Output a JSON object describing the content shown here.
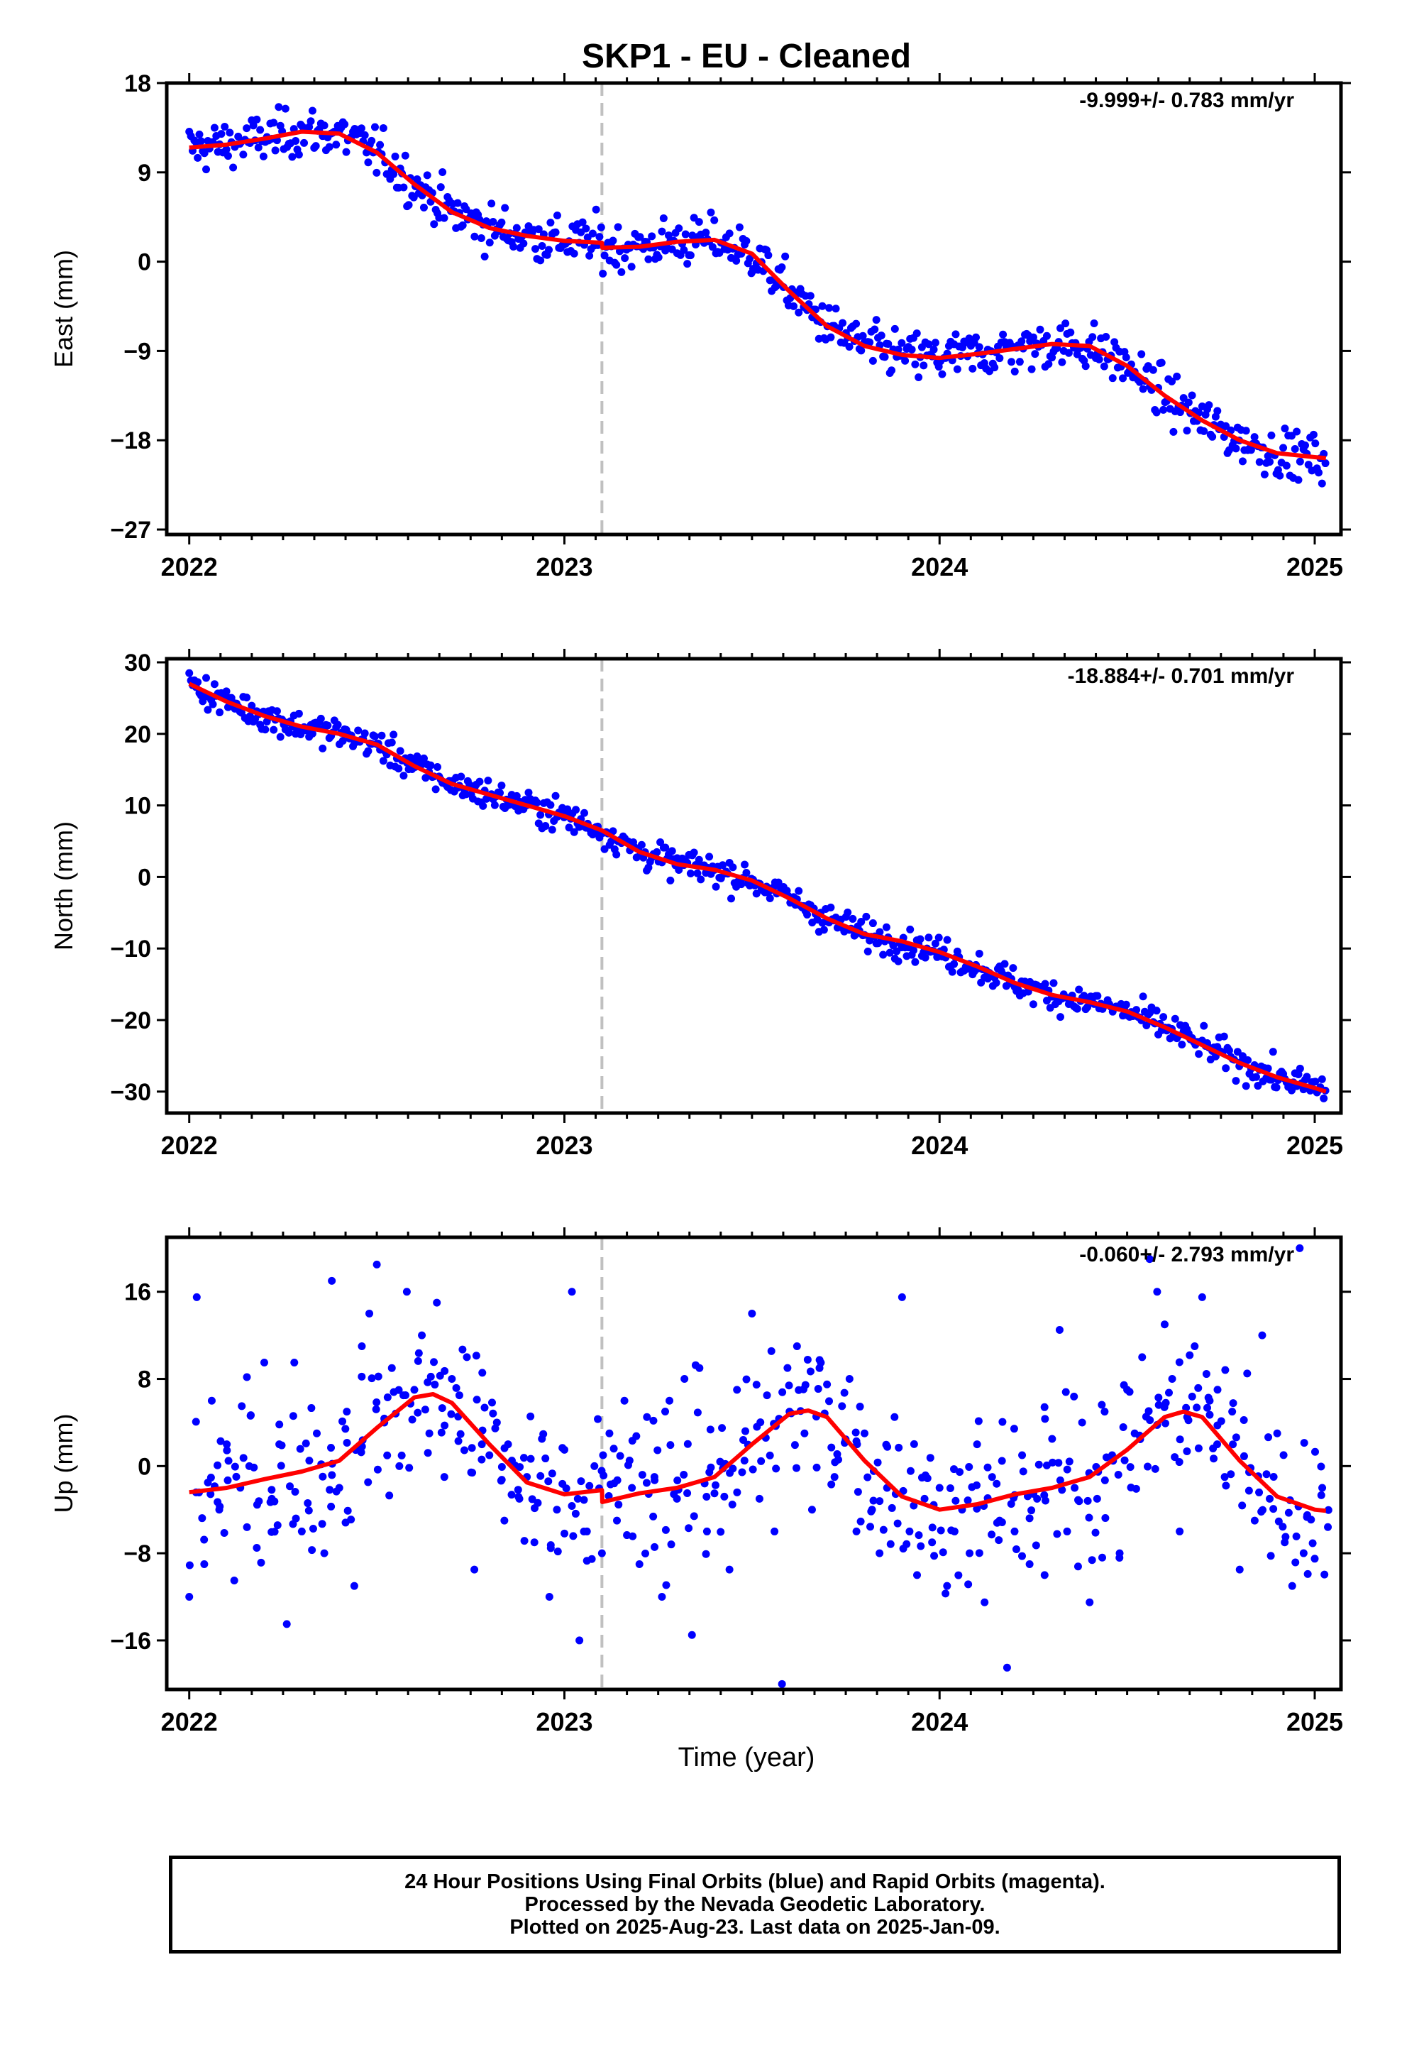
{
  "title": "SKP1  - EU - Cleaned",
  "xlabel": "Time (year)",
  "footer": {
    "line1": "24 Hour Positions Using Final Orbits (blue) and Rapid Orbits (magenta).",
    "line2": "Processed by the Nevada Geodetic Laboratory.",
    "line3": "Plotted on 2025-Aug-23. Last data on 2025-Jan-09."
  },
  "colors": {
    "points": "#0000ff",
    "fit": "#ff0000",
    "marker_line": "#c0c0c0"
  },
  "chart_data": [
    {
      "type": "scatter",
      "panel": "east",
      "ylabel": "East (mm)",
      "rate_label": "-9.999+/- 0.783 mm/yr",
      "xlim": [
        2021.94,
        2025.07
      ],
      "ylim": [
        -27.5,
        18
      ],
      "yticks": [
        18,
        9,
        0,
        -9,
        -18,
        -27
      ],
      "ytick_labels": [
        "18",
        "9",
        "0",
        "−9",
        "−18",
        "−27"
      ],
      "xticks": [
        2022,
        2023,
        2024,
        2025
      ],
      "xtick_labels": [
        "2022",
        "2023",
        "2024",
        "2025"
      ],
      "marker_x": 2023.1,
      "fit_x": [
        2022.0,
        2022.1,
        2022.2,
        2022.3,
        2022.4,
        2022.5,
        2022.6,
        2022.7,
        2022.8,
        2022.9,
        2023.0,
        2023.1,
        2023.101,
        2023.2,
        2023.3,
        2023.4,
        2023.5,
        2023.6,
        2023.7,
        2023.8,
        2023.9,
        2024.0,
        2024.1,
        2024.2,
        2024.3,
        2024.4,
        2024.5,
        2024.6,
        2024.7,
        2024.8,
        2024.9,
        2025.0,
        2025.03
      ],
      "fit_y": [
        11.5,
        11.8,
        12.4,
        13.1,
        12.9,
        11.0,
        7.8,
        5.0,
        3.4,
        2.6,
        2.1,
        1.9,
        1.4,
        1.5,
        2.0,
        2.2,
        0.8,
        -3.0,
        -6.5,
        -8.5,
        -9.4,
        -9.7,
        -9.3,
        -8.8,
        -8.3,
        -8.5,
        -10.5,
        -13.5,
        -16.0,
        -18.0,
        -19.3,
        -19.7,
        -19.8
      ]
    },
    {
      "type": "scatter",
      "panel": "north",
      "ylabel": "North (mm)",
      "rate_label": "-18.884+/- 0.701 mm/yr",
      "xlim": [
        2021.94,
        2025.07
      ],
      "ylim": [
        -33,
        30.5
      ],
      "yticks": [
        30,
        20,
        10,
        0,
        -10,
        -20,
        -30
      ],
      "ytick_labels": [
        "30",
        "20",
        "10",
        "0",
        "−10",
        "−20",
        "−30"
      ],
      "xticks": [
        2022,
        2023,
        2024,
        2025
      ],
      "xtick_labels": [
        "2022",
        "2023",
        "2024",
        "2025"
      ],
      "marker_x": 2023.1,
      "fit_x": [
        2022.0,
        2022.1,
        2022.2,
        2022.3,
        2022.4,
        2022.5,
        2022.6,
        2022.7,
        2022.8,
        2022.9,
        2023.0,
        2023.1,
        2023.2,
        2023.3,
        2023.4,
        2023.5,
        2023.6,
        2023.7,
        2023.8,
        2023.9,
        2024.0,
        2024.1,
        2024.2,
        2024.3,
        2024.4,
        2024.5,
        2024.6,
        2024.7,
        2024.8,
        2024.9,
        2025.0,
        2025.03
      ],
      "fit_y": [
        27.0,
        24.5,
        22.5,
        21.0,
        20.0,
        18.5,
        15.5,
        13.0,
        11.5,
        10.0,
        8.5,
        6.5,
        3.5,
        1.8,
        1.0,
        -0.5,
        -3.0,
        -5.8,
        -8.0,
        -9.0,
        -10.5,
        -12.5,
        -14.8,
        -16.5,
        -17.5,
        -18.8,
        -21.0,
        -23.5,
        -26.0,
        -28.0,
        -29.5,
        -30.0
      ]
    },
    {
      "type": "scatter",
      "panel": "up",
      "ylabel": "Up (mm)",
      "rate_label": "-0.060+/- 2.793 mm/yr",
      "xlim": [
        2021.94,
        2025.07
      ],
      "ylim": [
        -20.5,
        21
      ],
      "yticks": [
        16,
        8,
        0,
        -8,
        -16
      ],
      "ytick_labels": [
        "16",
        "8",
        "0",
        "−8",
        "−16"
      ],
      "xticks": [
        2022,
        2023,
        2024,
        2025
      ],
      "xtick_labels": [
        "2022",
        "2023",
        "2024",
        "2025"
      ],
      "marker_x": 2023.1,
      "fit_x": [
        2022.0,
        2022.1,
        2022.2,
        2022.3,
        2022.4,
        2022.5,
        2022.6,
        2022.65,
        2022.7,
        2022.8,
        2022.9,
        2023.0,
        2023.1,
        2023.101,
        2023.2,
        2023.3,
        2023.4,
        2023.5,
        2023.6,
        2023.65,
        2023.7,
        2023.8,
        2023.9,
        2024.0,
        2024.1,
        2024.2,
        2024.3,
        2024.4,
        2024.5,
        2024.6,
        2024.65,
        2024.7,
        2024.8,
        2024.9,
        2025.0,
        2025.03
      ],
      "fit_y": [
        -2.4,
        -2.0,
        -1.2,
        -0.5,
        0.5,
        3.5,
        6.3,
        6.6,
        5.8,
        2.0,
        -1.5,
        -2.6,
        -2.2,
        -3.3,
        -2.5,
        -2.0,
        -1.0,
        2.0,
        4.8,
        5.1,
        4.5,
        0.5,
        -2.8,
        -4.0,
        -3.5,
        -2.6,
        -2.0,
        -1.0,
        1.5,
        4.5,
        5.0,
        4.5,
        0.5,
        -2.8,
        -4.0,
        -4.1
      ],
      "points_x": [
        2022.0,
        2022.02,
        2022.04,
        2022.06,
        2022.08,
        2022.1,
        2022.12,
        2022.14,
        2022.16,
        2022.18,
        2022.2,
        2022.22,
        2022.24,
        2022.26,
        2022.28,
        2022.3,
        2022.32,
        2022.34,
        2022.36,
        2022.38,
        2022.4,
        2022.42,
        2022.44,
        2022.46,
        2022.48,
        2022.5,
        2022.52,
        2022.54,
        2022.56,
        2022.58,
        2022.6,
        2022.62,
        2022.64,
        2022.66,
        2022.68,
        2022.7,
        2022.72,
        2022.74,
        2022.76,
        2022.78,
        2022.8,
        2022.82,
        2022.84,
        2022.86,
        2022.88,
        2022.9,
        2022.92,
        2022.94,
        2022.96,
        2022.98,
        2023.0,
        2023.02,
        2023.04,
        2023.06,
        2023.08,
        2023.1,
        2023.12,
        2023.14,
        2023.16,
        2023.18,
        2023.2,
        2023.22,
        2023.24,
        2023.26,
        2023.28,
        2023.3,
        2023.32,
        2023.34,
        2023.36,
        2023.38,
        2023.4,
        2023.42,
        2023.44,
        2023.46,
        2023.48,
        2023.5,
        2023.52,
        2023.54,
        2023.56,
        2023.58,
        2023.6,
        2023.62,
        2023.64,
        2023.66,
        2023.68,
        2023.7,
        2023.72,
        2023.74,
        2023.76,
        2023.78,
        2023.8,
        2023.82,
        2023.84,
        2023.86,
        2023.88,
        2023.9,
        2023.92,
        2023.94,
        2023.96,
        2023.98,
        2024.0,
        2024.02,
        2024.04,
        2024.06,
        2024.08,
        2024.1,
        2024.12,
        2024.14,
        2024.16,
        2024.18,
        2024.2,
        2024.22,
        2024.24,
        2024.26,
        2024.28,
        2024.3,
        2024.32,
        2024.34,
        2024.36,
        2024.38,
        2024.4,
        2024.42,
        2024.44,
        2024.46,
        2024.48,
        2024.5,
        2024.52,
        2024.54,
        2024.56,
        2024.58,
        2024.6,
        2024.62,
        2024.64,
        2024.66,
        2024.68,
        2024.7,
        2024.72,
        2024.74,
        2024.76,
        2024.78,
        2024.8,
        2024.82,
        2024.84,
        2024.86,
        2024.88,
        2024.9,
        2024.92,
        2024.94,
        2024.96,
        2024.98,
        2025.0,
        2025.02
      ],
      "points_y": [
        -12.0,
        15.5,
        -9.0,
        6.0,
        -4.0,
        2.0,
        -10.5,
        5.5,
        0.0,
        -7.5,
        9.5,
        -3.0,
        2.0,
        -14.5,
        9.5,
        -6.0,
        0.5,
        3.0,
        -8.0,
        17.0,
        -2.0,
        5.0,
        -11.0,
        11.0,
        14.0,
        18.5,
        4.0,
        9.0,
        0.0,
        16.0,
        7.0,
        12.0,
        3.0,
        15.0,
        -1.0,
        8.0,
        6.5,
        10.0,
        -9.5,
        2.0,
        1.0,
        4.0,
        -5.0,
        0.5,
        -3.0,
        -1.0,
        -7.0,
        2.5,
        -12.0,
        -4.0,
        1.5,
        16.0,
        -16.0,
        -6.0,
        0.0,
        -8.0,
        3.0,
        -5.0,
        6.0,
        -2.0,
        -9.0,
        4.5,
        -1.0,
        -12.0,
        6.0,
        -3.0,
        8.0,
        -15.5,
        9.0,
        -6.0,
        -2.5,
        3.5,
        -9.5,
        7.0,
        0.5,
        14.0,
        -3.0,
        6.5,
        -6.0,
        -20.0,
        5.0,
        11.0,
        3.0,
        -4.0,
        9.0,
        7.5,
        -1.0,
        5.5,
        8.0,
        2.0,
        3.0,
        -4.0,
        -8.0,
        -2.0,
        4.5,
        15.5,
        -6.0,
        -10.0,
        -3.0,
        -7.0,
        -2.0,
        -11.0,
        -6.0,
        -4.0,
        -8.0,
        2.0,
        -12.5,
        -1.0,
        -5.0,
        -18.5,
        -6.0,
        1.0,
        -9.0,
        -3.0,
        -10.0,
        2.5,
        12.5,
        -6.0,
        -2.0,
        4.0,
        -12.5,
        -3.0,
        5.0,
        1.0,
        -8.0,
        7.0,
        3.0,
        10.0,
        19.0,
        16.0,
        13.0,
        8.0,
        -6.0,
        4.5,
        11.0,
        15.5,
        6.0,
        2.0,
        -1.0,
        5.0,
        -9.5,
        8.5,
        -5.0,
        12.0,
        -3.0,
        3.0,
        -7.0,
        -11.0,
        20.0,
        -4.5,
        -8.5,
        -2.0,
        -5.0,
        -6.5
      ]
    }
  ]
}
